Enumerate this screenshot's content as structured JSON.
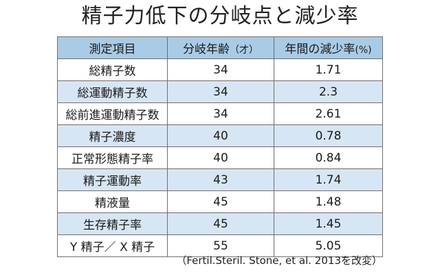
{
  "title": "精子力低下の分岐点と減少率",
  "table": {
    "headers": {
      "measure": "測定項目",
      "age_main": "分岐年齢",
      "age_note": "（才）",
      "rate_main": "年間の減少率",
      "rate_note": "(%)"
    },
    "rows": [
      {
        "item": "総精子数",
        "age": "34",
        "rate": "1.71"
      },
      {
        "item": "総運動精子数",
        "age": "34",
        "rate": "2.3"
      },
      {
        "item": "総前進運動精子数",
        "age": "34",
        "rate": "2.61"
      },
      {
        "item": "精子濃度",
        "age": "40",
        "rate": "0.78"
      },
      {
        "item": "正常形態精子率",
        "age": "40",
        "rate": "0.84"
      },
      {
        "item": "精子運動率",
        "age": "43",
        "rate": "1.74"
      },
      {
        "item": "精液量",
        "age": "45",
        "rate": "1.48"
      },
      {
        "item": "生存精子率",
        "age": "45",
        "rate": "1.45"
      },
      {
        "item": "Y 精子／ X 精子",
        "age": "55",
        "rate": "5.05"
      }
    ]
  },
  "source": "（Fertil.Steril. Stone, et al. 2013を改変）",
  "colors": {
    "header_bg": "#a9cbe6",
    "stripe_bg": "#d7e6f4",
    "border": "#6e6e6e"
  }
}
